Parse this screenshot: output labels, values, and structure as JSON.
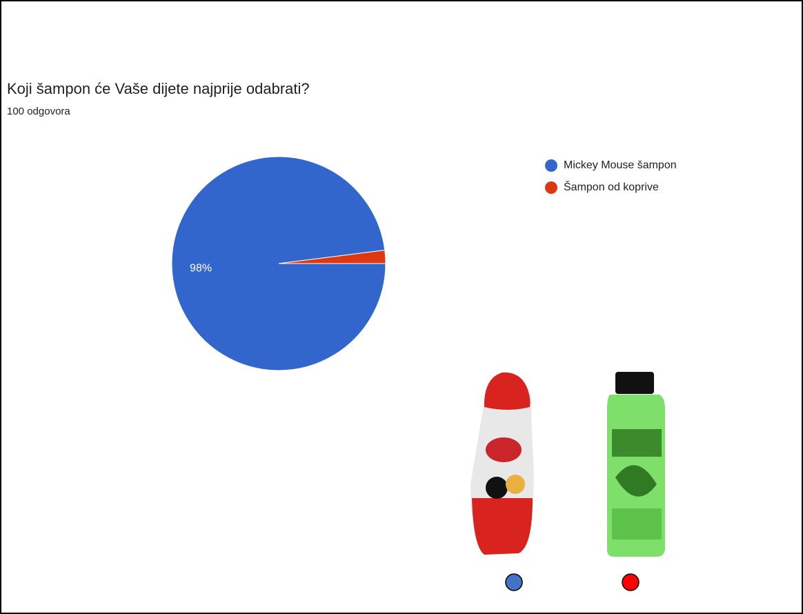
{
  "chart_data": {
    "type": "pie",
    "title": "Koji šampon će Vaše dijete najprije odabrati?",
    "subtitle": "100 odgovora",
    "categories": [
      "Mickey Mouse šampon",
      "Šampon od koprive"
    ],
    "values": [
      98,
      2
    ],
    "value_labels": [
      "98%",
      null
    ],
    "colors": [
      "#3366cc",
      "#dc3912"
    ],
    "legend": "right"
  }
}
